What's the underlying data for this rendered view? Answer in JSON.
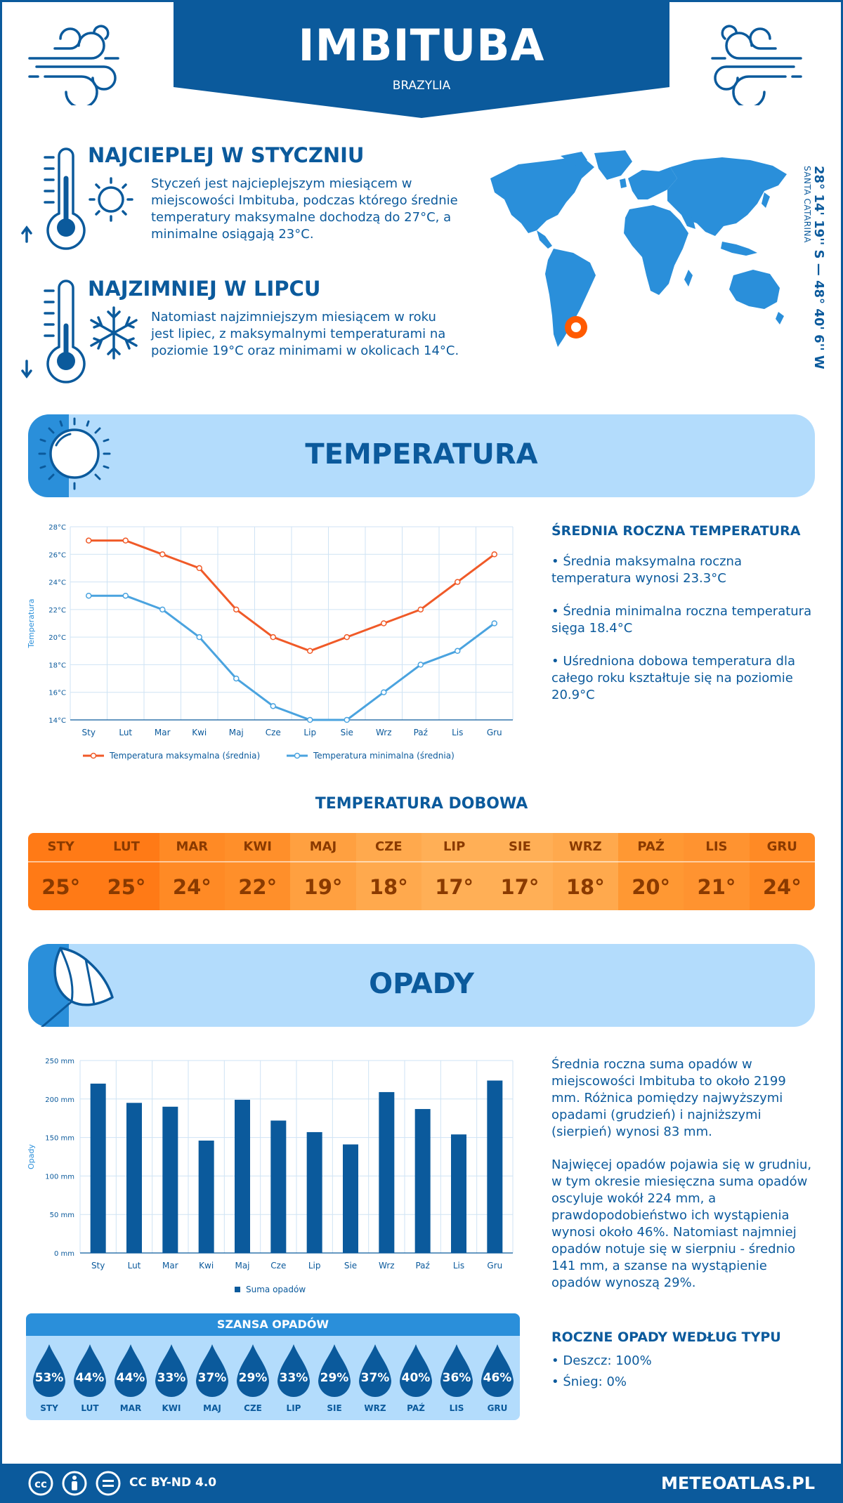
{
  "header": {
    "city": "IMBITUBA",
    "country": "BRAZYLIA"
  },
  "hottest": {
    "title": "NAJCIEPLEJ W STYCZNIU",
    "text": "Styczeń jest najcieplejszym miesiącem w miejscowości Imbituba, podczas którego średnie temperatury maksymalne dochodzą do 27°C, a minimalne osiągają 23°C."
  },
  "coldest": {
    "title": "NAJZIMNIEJ W LIPCU",
    "text": "Natomiast najzimniejszym miesiącem w roku jest lipiec, z maksymalnymi temperaturami na poziomie 19°C oraz minimami w okolicach 14°C."
  },
  "location": {
    "coords": "28° 14' 19'' S — 48° 40' 6'' W",
    "region": "SANTA CATARINA"
  },
  "temperature_section": {
    "title": "TEMPERATURA"
  },
  "temperature_summary": {
    "title": "ŚREDNIA ROCZNA TEMPERATURA",
    "items": [
      "• Średnia maksymalna roczna temperatura wynosi 23.3°C",
      "• Średnia minimalna roczna temperatura sięga 18.4°C",
      "• Uśredniona dobowa temperatura dla całego roku kształtuje się na poziomie 20.9°C"
    ]
  },
  "daily": {
    "title": "TEMPERATURA DOBOWA",
    "months": [
      "STY",
      "LUT",
      "MAR",
      "KWI",
      "MAJ",
      "CZE",
      "LIP",
      "SIE",
      "WRZ",
      "PAŹ",
      "LIS",
      "GRU"
    ],
    "values": [
      "25°",
      "25°",
      "24°",
      "22°",
      "19°",
      "18°",
      "17°",
      "17°",
      "18°",
      "20°",
      "21°",
      "24°"
    ],
    "colors": [
      "#ff7a16",
      "#ff7a16",
      "#ff8a25",
      "#ff8f2a",
      "#ffa040",
      "#ffa94d",
      "#ffaf56",
      "#ffaf56",
      "#ffa94d",
      "#ff9833",
      "#ff9330",
      "#ff8a25"
    ]
  },
  "precip_section": {
    "title": "OPADY"
  },
  "precip_summary": {
    "p1": "Średnia roczna suma opadów w miejscowości Imbituba to około 2199 mm. Różnica pomiędzy najwyższymi opadami (grudzień) i najniższymi (sierpień) wynosi 83 mm.",
    "p2": "Najwięcej opadów pojawia się w grudniu, w tym okresie miesięczna suma opadów oscyluje wokół 224 mm, a prawdopodobieństwo ich wystąpienia wynosi około 46%. Natomiast najmniej opadów notuje się w sierpniu - średnio 141 mm, a szanse na wystąpienie opadów wynoszą 29%."
  },
  "chance": {
    "title": "SZANSA OPADÓW",
    "months": [
      "STY",
      "LUT",
      "MAR",
      "KWI",
      "MAJ",
      "CZE",
      "LIP",
      "SIE",
      "WRZ",
      "PAŹ",
      "LIS",
      "GRU"
    ],
    "values": [
      "53%",
      "44%",
      "44%",
      "33%",
      "37%",
      "29%",
      "33%",
      "29%",
      "37%",
      "40%",
      "36%",
      "46%"
    ]
  },
  "precip_type": {
    "title": "ROCZNE OPADY WEDŁUG TYPU",
    "rain": "• Deszcz: 100%",
    "snow": "• Śnieg: 0%"
  },
  "footer": {
    "license": "CC BY-ND 4.0",
    "site": "METEOATLAS.PL"
  },
  "colors": {
    "brand": "#0b5a9c",
    "light": "#b3dcfc",
    "accent": "#2a8fda",
    "max": "#f05a28",
    "min": "#4aa3df",
    "marker": "#ff5a00"
  },
  "chart_data": [
    {
      "type": "line",
      "categories": [
        "Sty",
        "Lut",
        "Mar",
        "Kwi",
        "Maj",
        "Cze",
        "Lip",
        "Sie",
        "Wrz",
        "Paź",
        "Lis",
        "Gru"
      ],
      "series": [
        {
          "name": "Temperatura maksymalna (średnia)",
          "values": [
            27,
            27,
            26,
            25,
            22,
            20,
            19,
            20,
            21,
            22,
            24,
            26
          ]
        },
        {
          "name": "Temperatura minimalna (średnia)",
          "values": [
            23,
            23,
            22,
            20,
            17,
            15,
            14,
            14,
            16,
            18,
            19,
            21
          ]
        }
      ],
      "ylabel": "Temperatura",
      "ylim": [
        14,
        28
      ],
      "yticks": [
        "14°C",
        "16°C",
        "18°C",
        "20°C",
        "22°C",
        "24°C",
        "26°C",
        "28°C"
      ],
      "grid": true,
      "legend": "bottom"
    },
    {
      "type": "bar",
      "categories": [
        "Sty",
        "Lut",
        "Mar",
        "Kwi",
        "Maj",
        "Cze",
        "Lip",
        "Sie",
        "Wrz",
        "Paź",
        "Lis",
        "Gru"
      ],
      "series": [
        {
          "name": "Suma opadów",
          "values": [
            220,
            195,
            190,
            146,
            199,
            172,
            157,
            141,
            209,
            187,
            154,
            224
          ]
        }
      ],
      "ylabel": "Opady",
      "ylim": [
        0,
        250
      ],
      "yticks": [
        "0 mm",
        "50 mm",
        "100 mm",
        "150 mm",
        "200 mm",
        "250 mm"
      ],
      "grid": true,
      "legend": "bottom"
    }
  ]
}
